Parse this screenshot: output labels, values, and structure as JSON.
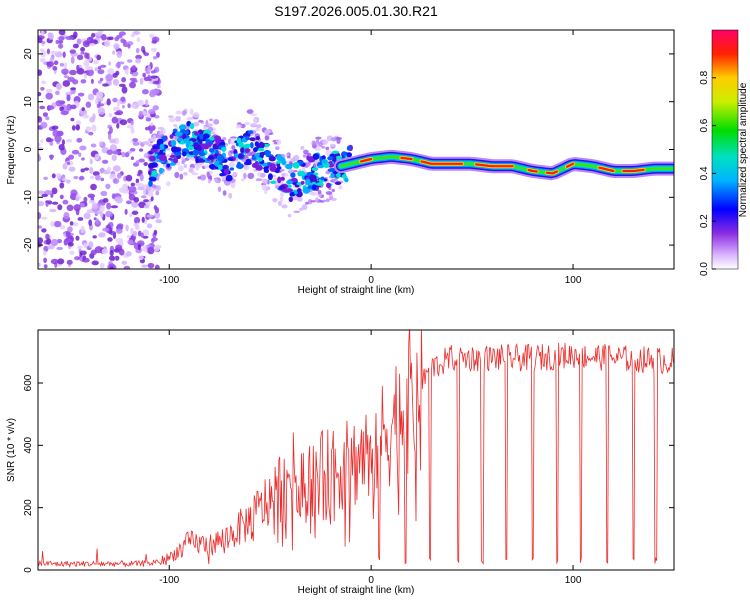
{
  "title": "S197.2026.005.01.30.R21",
  "colors": {
    "snr_line": "#ee2a2a",
    "axis": "#000000",
    "spectrum_low": "#cc99ff",
    "spectrum_high": "#ff0066"
  },
  "chart_data": [
    {
      "type": "heatmap",
      "name": "spectrogram",
      "xlabel": "Height of straight line (km)",
      "ylabel": "Frequency (Hz)",
      "xlim": [
        -165,
        150
      ],
      "ylim": [
        -25,
        25
      ],
      "xticks": [
        -100,
        0,
        100
      ],
      "yticks": [
        -20,
        -10,
        0,
        10,
        20
      ],
      "colorbar": {
        "label": "Normalized spectral amplitude",
        "range": [
          0,
          1
        ],
        "ticks": [
          "0.0",
          "0.2",
          "0.4",
          "0.6",
          "0.8"
        ],
        "tick_values": [
          0.0,
          0.2,
          0.4,
          0.6,
          0.8
        ]
      },
      "ridge": {
        "description_values": "frequency center (Hz) vs height (km)",
        "x": [
          -110,
          -100,
          -90,
          -80,
          -70,
          -60,
          -50,
          -40,
          -30,
          -20,
          -10,
          0,
          10,
          20,
          30,
          40,
          50,
          60,
          70,
          80,
          90,
          100,
          110,
          120,
          130,
          140,
          150
        ],
        "y": [
          -4,
          0,
          2,
          0,
          -3,
          1,
          -3,
          -7,
          -5,
          -4,
          -3,
          -2,
          -1.5,
          -2,
          -3,
          -3,
          -3,
          -3.5,
          -3.5,
          -4.5,
          -5,
          -3,
          -3.5,
          -4.5,
          -4.5,
          -4,
          -4
        ]
      }
    },
    {
      "type": "line",
      "name": "snr",
      "xlabel": "Height of straight line (km)",
      "ylabel": "SNR (10 * v/v)",
      "xlim": [
        -165,
        150
      ],
      "ylim": [
        0,
        770
      ],
      "xticks": [
        -100,
        0,
        100
      ],
      "yticks": [
        0,
        200,
        400,
        600
      ],
      "envelope": {
        "x": [
          -165,
          -110,
          -100,
          -90,
          -80,
          -70,
          -60,
          -50,
          -40,
          -30,
          -20,
          -10,
          0,
          10,
          20,
          30,
          40,
          60,
          80,
          100,
          120,
          150
        ],
        "y": [
          20,
          20,
          40,
          90,
          80,
          110,
          160,
          230,
          310,
          300,
          320,
          340,
          390,
          470,
          560,
          650,
          680,
          680,
          680,
          690,
          680,
          670
        ]
      },
      "dropouts_x": [
        4,
        17,
        29,
        43,
        55,
        67,
        80,
        92,
        104,
        117,
        130,
        141
      ]
    }
  ]
}
